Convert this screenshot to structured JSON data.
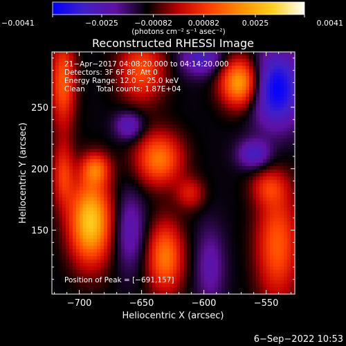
{
  "chart_data": {
    "type": "heatmap",
    "title": "Reconstructed RHESSI Image",
    "xlabel": "Heliocentric X (arcsec)",
    "ylabel": "Heliocentric Y (arcsec)",
    "xlim": [
      -722,
      -527
    ],
    "ylim": [
      98,
      295
    ],
    "x_ticks": [
      -700,
      -650,
      -600,
      -550
    ],
    "x_tick_labels": [
      "−700",
      "−650",
      "−600",
      "−550"
    ],
    "y_ticks": [
      150,
      200,
      250
    ],
    "y_tick_labels": [
      "150",
      "200",
      "250"
    ],
    "colorbar": {
      "range": [
        -0.0041,
        0.0041
      ],
      "ticks": [
        -0.0041,
        -0.0025,
        -0.00082,
        0.00082,
        0.0025,
        0.0041
      ],
      "tick_labels": [
        "−0.0041",
        "−0.0025",
        "−0.00082",
        "0.00082",
        "0.0025",
        "0.0041"
      ],
      "unit_label": "(photons cm⁻² s⁻¹ asec⁻²)",
      "colormap": [
        "#0000ff",
        "#4020c8",
        "#6010a0",
        "#000000",
        "#c00000",
        "#ff4000",
        "#ff9000",
        "#ffd020",
        "#ffffff"
      ]
    },
    "annotations": [
      "21−Apr−2017 04:08:20.000 to 04:14:20.000",
      "Detectors: 3F 6F 8F, Att 0",
      "Energy Range: 12.0 − 25.0 keV",
      "Clean     Total counts: 1.87E+04"
    ],
    "peak_label": "Position of Peak = [−691,157]",
    "peak": [
      -691,
      157
    ],
    "grid": false,
    "sources": [
      {
        "x": -691,
        "y": 157,
        "sx": 12,
        "sy": 24,
        "amp": 0.0041
      },
      {
        "x": -687,
        "y": 200,
        "sx": 8,
        "sy": 9,
        "amp": 0.0022
      },
      {
        "x": -571,
        "y": 270,
        "sx": 11,
        "sy": 14,
        "amp": 0.0036
      },
      {
        "x": -636,
        "y": 208,
        "sx": 13,
        "sy": 15,
        "amp": 0.0028
      },
      {
        "x": -650,
        "y": 280,
        "sx": 13,
        "sy": 18,
        "amp": 0.0022
      },
      {
        "x": -631,
        "y": 128,
        "sx": 10,
        "sy": 20,
        "amp": 0.0028
      },
      {
        "x": -611,
        "y": 180,
        "sx": 8,
        "sy": 9,
        "amp": 0.0014
      },
      {
        "x": -541,
        "y": 138,
        "sx": 12,
        "sy": 32,
        "amp": 0.0024
      },
      {
        "x": -548,
        "y": 185,
        "sx": 10,
        "sy": 10,
        "amp": 0.0014
      },
      {
        "x": -713,
        "y": 270,
        "sx": 7,
        "sy": 26,
        "amp": 0.0024
      },
      {
        "x": -713,
        "y": 195,
        "sx": 6,
        "sy": 18,
        "amp": 0.0018
      },
      {
        "x": -560,
        "y": 212,
        "sx": 9,
        "sy": 8,
        "amp": -0.0018
      },
      {
        "x": -542,
        "y": 265,
        "sx": 14,
        "sy": 22,
        "amp": -0.003
      },
      {
        "x": -602,
        "y": 290,
        "sx": 12,
        "sy": 10,
        "amp": -0.0018
      },
      {
        "x": -660,
        "y": 235,
        "sx": 8,
        "sy": 8,
        "amp": -0.0016
      },
      {
        "x": -660,
        "y": 150,
        "sx": 9,
        "sy": 22,
        "amp": -0.0014
      },
      {
        "x": -595,
        "y": 120,
        "sx": 8,
        "sy": 22,
        "amp": -0.0012
      }
    ]
  },
  "footer": {
    "date": "6−Sep−2022 10:53"
  }
}
